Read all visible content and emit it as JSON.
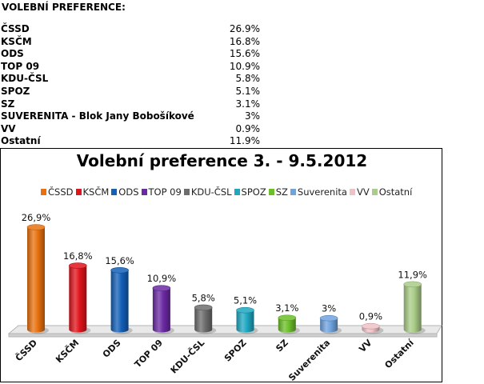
{
  "preferences": {
    "heading": "VOLEBNÍ PREFERENCE:",
    "rows": [
      {
        "party": "ČSSD",
        "value": "26.9%"
      },
      {
        "party": "KSČM",
        "value": "16.8%"
      },
      {
        "party": "ODS",
        "value": "15.6%"
      },
      {
        "party": "TOP 09",
        "value": "10.9%"
      },
      {
        "party": "KDU-ČSL",
        "value": "5.8%"
      },
      {
        "party": "SPOZ",
        "value": "5.1%"
      },
      {
        "party": "SZ",
        "value": "3.1%"
      },
      {
        "party": "SUVERENITA - Blok Jany Bobošíkové",
        "value": "3%"
      },
      {
        "party": "VV",
        "value": "0.9%"
      },
      {
        "party": "Ostatní",
        "value": "11.9%"
      }
    ]
  },
  "chart_data": {
    "type": "bar",
    "title": "Volební preference 3. - 9.5.2012",
    "categories": [
      "ČSSD",
      "KSČM",
      "ODS",
      "TOP 09",
      "KDU-ČSL",
      "SPOZ",
      "SZ",
      "Suverenita",
      "VV",
      "Ostatní"
    ],
    "values": [
      26.9,
      16.8,
      15.6,
      10.9,
      5.8,
      5.1,
      3.1,
      3,
      0.9,
      11.9
    ],
    "value_labels": [
      "26,9%",
      "16,8%",
      "15,6%",
      "10,9%",
      "5,8%",
      "5,1%",
      "3,1%",
      "3%",
      "0,9%",
      "11,9%"
    ],
    "legend_labels": [
      "ČSSD",
      "KSČM",
      "ODS",
      "TOP 09",
      "KDU-ČSL",
      "SPOZ",
      "SZ",
      "Suverenita",
      "VV",
      "Ostatní"
    ],
    "colors": [
      "#e8710f",
      "#e0141b",
      "#1360b8",
      "#6b2aa4",
      "#6d6d6d",
      "#1fa7c1",
      "#6cbf2a",
      "#6fa3df",
      "#f0c2c7",
      "#a9cc87"
    ],
    "legend_position": "top",
    "grid": false,
    "style": "3d-cylinder",
    "ylim": [
      0,
      30
    ]
  }
}
